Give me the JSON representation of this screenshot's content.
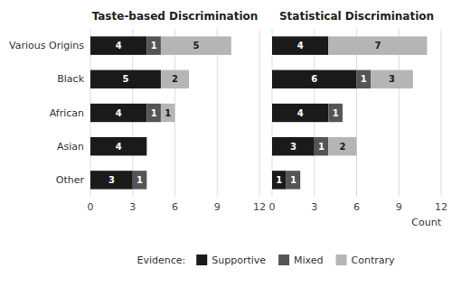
{
  "chart_data": [
    {
      "type": "bar",
      "orientation": "horizontal",
      "stacked": true,
      "data_labels": true,
      "grid": true,
      "title": "Taste-based Discrimination",
      "categories": [
        "Various Origins",
        "Black",
        "African",
        "Asian",
        "Other"
      ],
      "series": [
        {
          "name": "Supportive",
          "color": "#1a1a1a",
          "values": [
            4,
            5,
            4,
            4,
            3
          ]
        },
        {
          "name": "Mixed",
          "color": "#555555",
          "values": [
            1,
            0,
            1,
            0,
            1
          ]
        },
        {
          "name": "Contrary",
          "color": "#b5b5b5",
          "values": [
            5,
            2,
            1,
            0,
            0
          ]
        }
      ],
      "xlim": [
        0,
        12
      ],
      "xticks": [
        0,
        3,
        6,
        9,
        12
      ]
    },
    {
      "type": "bar",
      "orientation": "horizontal",
      "stacked": true,
      "data_labels": true,
      "grid": true,
      "title": "Statistical Discrimination",
      "xlabel": "Count",
      "tick_labels": "x",
      "legend": "bottom",
      "legend_title": "Evidence:",
      "categories": [
        "Various Origins",
        "Black",
        "African",
        "Asian",
        "Other"
      ],
      "series": [
        {
          "name": "Supportive",
          "color": "#1a1a1a",
          "values": [
            4,
            6,
            4,
            3,
            1
          ]
        },
        {
          "name": "Mixed",
          "color": "#555555",
          "values": [
            0,
            1,
            1,
            1,
            1
          ]
        },
        {
          "name": "Contrary",
          "color": "#b5b5b5",
          "values": [
            7,
            3,
            0,
            2,
            0
          ]
        }
      ],
      "xlim": [
        0,
        12
      ],
      "xticks": [
        0,
        3,
        6,
        9,
        12
      ]
    }
  ]
}
